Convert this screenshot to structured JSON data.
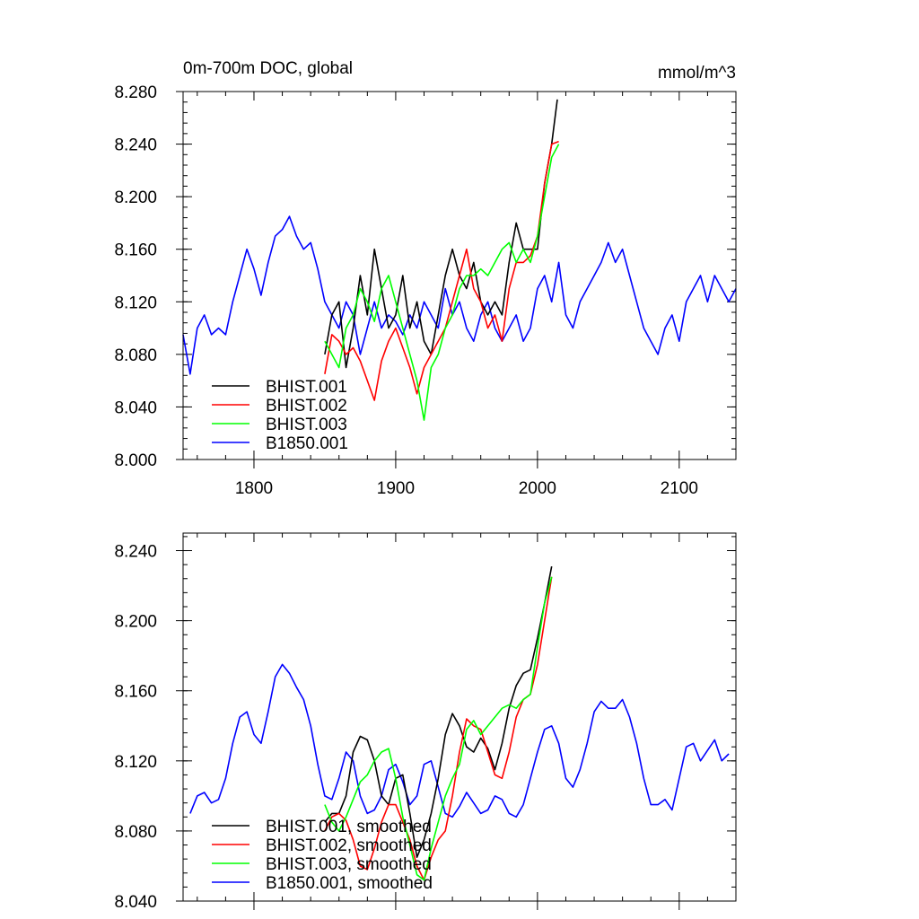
{
  "chart_data": [
    {
      "type": "line",
      "title": "0m-700m DOC, global",
      "units": "mmol/m^3",
      "xlabel": "",
      "ylabel": "",
      "xlim": [
        1750,
        2140
      ],
      "ylim": [
        8.0,
        8.28
      ],
      "x_ticks": [
        1800,
        1900,
        2000,
        2100
      ],
      "x_tick_labels": [
        "1800",
        "1900",
        "2000",
        "2100"
      ],
      "y_ticks": [
        8.0,
        8.04,
        8.08,
        8.12,
        8.16,
        8.2,
        8.24,
        8.28
      ],
      "y_tick_labels": [
        "8.000",
        "8.040",
        "8.080",
        "8.120",
        "8.160",
        "8.200",
        "8.240",
        "8.280"
      ],
      "grid": false,
      "legend_position": "bottom-left",
      "series": [
        {
          "name": "BHIST.001",
          "color": "#000000",
          "x": [
            1850,
            1855,
            1860,
            1865,
            1870,
            1875,
            1880,
            1885,
            1890,
            1895,
            1900,
            1905,
            1910,
            1915,
            1920,
            1925,
            1930,
            1935,
            1940,
            1945,
            1950,
            1955,
            1960,
            1965,
            1970,
            1975,
            1980,
            1985,
            1990,
            1995,
            2000,
            2005,
            2010,
            2014
          ],
          "y": [
            8.08,
            8.11,
            8.12,
            8.07,
            8.1,
            8.14,
            8.11,
            8.16,
            8.13,
            8.1,
            8.11,
            8.14,
            8.1,
            8.12,
            8.09,
            8.08,
            8.11,
            8.14,
            8.16,
            8.14,
            8.13,
            8.15,
            8.12,
            8.11,
            8.12,
            8.11,
            8.15,
            8.18,
            8.16,
            8.16,
            8.16,
            8.21,
            8.24,
            8.274
          ]
        },
        {
          "name": "BHIST.002",
          "color": "#ff0000",
          "x": [
            1850,
            1855,
            1860,
            1865,
            1870,
            1875,
            1880,
            1885,
            1890,
            1895,
            1900,
            1905,
            1910,
            1915,
            1920,
            1925,
            1930,
            1935,
            1940,
            1945,
            1950,
            1955,
            1960,
            1965,
            1970,
            1975,
            1980,
            1985,
            1990,
            1995,
            2000,
            2005,
            2010,
            2015
          ],
          "y": [
            8.065,
            8.095,
            8.09,
            8.08,
            8.085,
            8.075,
            8.06,
            8.045,
            8.075,
            8.09,
            8.1,
            8.085,
            8.07,
            8.05,
            8.07,
            8.08,
            8.09,
            8.1,
            8.12,
            8.14,
            8.16,
            8.13,
            8.12,
            8.1,
            8.11,
            8.09,
            8.13,
            8.15,
            8.15,
            8.155,
            8.17,
            8.21,
            8.24,
            8.242
          ]
        },
        {
          "name": "BHIST.003",
          "color": "#00ff00",
          "x": [
            1850,
            1855,
            1860,
            1865,
            1870,
            1875,
            1880,
            1885,
            1890,
            1895,
            1900,
            1905,
            1910,
            1915,
            1920,
            1925,
            1930,
            1935,
            1940,
            1945,
            1950,
            1955,
            1960,
            1965,
            1970,
            1975,
            1980,
            1985,
            1990,
            1995,
            2000,
            2005,
            2010,
            2015
          ],
          "y": [
            8.09,
            8.08,
            8.07,
            8.1,
            8.11,
            8.13,
            8.12,
            8.105,
            8.13,
            8.14,
            8.12,
            8.1,
            8.08,
            8.06,
            8.03,
            8.07,
            8.08,
            8.1,
            8.11,
            8.13,
            8.14,
            8.14,
            8.145,
            8.14,
            8.15,
            8.16,
            8.165,
            8.15,
            8.16,
            8.15,
            8.17,
            8.2,
            8.23,
            8.24
          ]
        },
        {
          "name": "B1850.001",
          "color": "#0000ff",
          "x": [
            1750,
            1755,
            1760,
            1765,
            1770,
            1775,
            1780,
            1785,
            1790,
            1795,
            1800,
            1805,
            1810,
            1815,
            1820,
            1825,
            1830,
            1835,
            1840,
            1845,
            1850,
            1855,
            1860,
            1865,
            1870,
            1875,
            1880,
            1885,
            1890,
            1895,
            1900,
            1905,
            1910,
            1915,
            1920,
            1925,
            1930,
            1935,
            1940,
            1945,
            1950,
            1955,
            1960,
            1965,
            1970,
            1975,
            1980,
            1985,
            1990,
            1995,
            2000,
            2005,
            2010,
            2015,
            2020,
            2025,
            2030,
            2035,
            2040,
            2045,
            2050,
            2055,
            2060,
            2065,
            2070,
            2075,
            2080,
            2085,
            2090,
            2095,
            2100,
            2105,
            2110,
            2115,
            2120,
            2125,
            2130,
            2135,
            2140
          ],
          "y": [
            8.095,
            8.065,
            8.1,
            8.11,
            8.095,
            8.1,
            8.095,
            8.12,
            8.14,
            8.16,
            8.145,
            8.125,
            8.15,
            8.17,
            8.175,
            8.185,
            8.17,
            8.16,
            8.165,
            8.145,
            8.12,
            8.11,
            8.1,
            8.12,
            8.11,
            8.08,
            8.1,
            8.12,
            8.1,
            8.11,
            8.105,
            8.095,
            8.11,
            8.1,
            8.12,
            8.11,
            8.1,
            8.13,
            8.11,
            8.12,
            8.1,
            8.09,
            8.11,
            8.12,
            8.1,
            8.09,
            8.1,
            8.11,
            8.09,
            8.1,
            8.13,
            8.14,
            8.12,
            8.15,
            8.11,
            8.1,
            8.12,
            8.13,
            8.14,
            8.15,
            8.165,
            8.15,
            8.16,
            8.14,
            8.12,
            8.1,
            8.09,
            8.08,
            8.1,
            8.11,
            8.09,
            8.12,
            8.13,
            8.14,
            8.12,
            8.14,
            8.13,
            8.12,
            8.13
          ]
        }
      ]
    },
    {
      "type": "line",
      "title": "",
      "xlabel": "",
      "ylabel": "",
      "xlim": [
        1750,
        2140
      ],
      "ylim": [
        8.04,
        8.25
      ],
      "x_ticks": [
        1800,
        1900,
        2000,
        2100
      ],
      "y_ticks": [
        8.04,
        8.08,
        8.12,
        8.16,
        8.2,
        8.24
      ],
      "y_tick_labels": [
        "8.040",
        "8.080",
        "8.120",
        "8.160",
        "8.200",
        "8.240"
      ],
      "grid": false,
      "legend_position": "bottom-left",
      "series": [
        {
          "name": "BHIST.001, smoothed",
          "color": "#000000",
          "x": [
            1850,
            1855,
            1860,
            1865,
            1870,
            1875,
            1880,
            1885,
            1890,
            1895,
            1900,
            1905,
            1910,
            1915,
            1920,
            1925,
            1930,
            1935,
            1940,
            1945,
            1950,
            1955,
            1960,
            1965,
            1970,
            1975,
            1980,
            1985,
            1990,
            1995,
            2000,
            2005,
            2010
          ],
          "y": [
            8.085,
            8.09,
            8.09,
            8.1,
            8.125,
            8.134,
            8.132,
            8.12,
            8.1,
            8.095,
            8.11,
            8.112,
            8.09,
            8.065,
            8.075,
            8.09,
            8.11,
            8.135,
            8.147,
            8.14,
            8.128,
            8.125,
            8.133,
            8.127,
            8.115,
            8.13,
            8.15,
            8.163,
            8.17,
            8.172,
            8.19,
            8.21,
            8.231
          ]
        },
        {
          "name": "BHIST.002, smoothed",
          "color": "#ff0000",
          "x": [
            1850,
            1855,
            1860,
            1865,
            1870,
            1875,
            1880,
            1885,
            1890,
            1895,
            1900,
            1905,
            1910,
            1915,
            1920,
            1925,
            1930,
            1935,
            1940,
            1945,
            1950,
            1955,
            1960,
            1965,
            1970,
            1975,
            1980,
            1985,
            1990,
            1995,
            2000,
            2005,
            2010
          ],
          "y": [
            8.08,
            8.088,
            8.09,
            8.086,
            8.075,
            8.06,
            8.058,
            8.07,
            8.085,
            8.095,
            8.095,
            8.085,
            8.075,
            8.06,
            8.052,
            8.065,
            8.075,
            8.08,
            8.1,
            8.125,
            8.144,
            8.14,
            8.138,
            8.125,
            8.112,
            8.11,
            8.125,
            8.145,
            8.155,
            8.158,
            8.175,
            8.2,
            8.225
          ]
        },
        {
          "name": "BHIST.003, smoothed",
          "color": "#00ff00",
          "x": [
            1850,
            1855,
            1860,
            1865,
            1870,
            1875,
            1880,
            1885,
            1890,
            1895,
            1900,
            1905,
            1910,
            1915,
            1920,
            1925,
            1930,
            1935,
            1940,
            1945,
            1950,
            1955,
            1960,
            1965,
            1970,
            1975,
            1980,
            1985,
            1990,
            1995,
            2000,
            2005,
            2010
          ],
          "y": [
            8.095,
            8.085,
            8.08,
            8.088,
            8.098,
            8.108,
            8.112,
            8.12,
            8.125,
            8.127,
            8.11,
            8.088,
            8.072,
            8.055,
            8.052,
            8.07,
            8.085,
            8.1,
            8.11,
            8.118,
            8.138,
            8.143,
            8.135,
            8.14,
            8.145,
            8.15,
            8.152,
            8.15,
            8.155,
            8.158,
            8.185,
            8.21,
            8.225
          ]
        },
        {
          "name": "B1850.001, smoothed",
          "color": "#0000ff",
          "x": [
            1755,
            1760,
            1765,
            1770,
            1775,
            1780,
            1785,
            1790,
            1795,
            1800,
            1805,
            1810,
            1815,
            1820,
            1825,
            1830,
            1835,
            1840,
            1845,
            1850,
            1855,
            1860,
            1865,
            1870,
            1875,
            1880,
            1885,
            1890,
            1895,
            1900,
            1905,
            1910,
            1915,
            1920,
            1925,
            1930,
            1935,
            1940,
            1945,
            1950,
            1955,
            1960,
            1965,
            1970,
            1975,
            1980,
            1985,
            1990,
            1995,
            2000,
            2005,
            2010,
            2015,
            2020,
            2025,
            2030,
            2035,
            2040,
            2045,
            2050,
            2055,
            2060,
            2065,
            2070,
            2075,
            2080,
            2085,
            2090,
            2095,
            2100,
            2105,
            2110,
            2115,
            2120,
            2125,
            2130,
            2135
          ],
          "y": [
            8.09,
            8.1,
            8.102,
            8.096,
            8.098,
            8.11,
            8.13,
            8.145,
            8.148,
            8.135,
            8.13,
            8.148,
            8.168,
            8.175,
            8.17,
            8.162,
            8.155,
            8.14,
            8.118,
            8.1,
            8.098,
            8.11,
            8.125,
            8.12,
            8.1,
            8.09,
            8.092,
            8.1,
            8.115,
            8.118,
            8.108,
            8.095,
            8.1,
            8.118,
            8.12,
            8.105,
            8.09,
            8.088,
            8.094,
            8.102,
            8.096,
            8.09,
            8.092,
            8.1,
            8.098,
            8.09,
            8.088,
            8.095,
            8.11,
            8.125,
            8.138,
            8.14,
            8.13,
            8.11,
            8.105,
            8.115,
            8.13,
            8.148,
            8.154,
            8.15,
            8.15,
            8.155,
            8.145,
            8.13,
            8.11,
            8.095,
            8.095,
            8.098,
            8.092,
            8.11,
            8.128,
            8.13,
            8.12,
            8.126,
            8.132,
            8.12,
            8.124
          ]
        }
      ]
    }
  ]
}
